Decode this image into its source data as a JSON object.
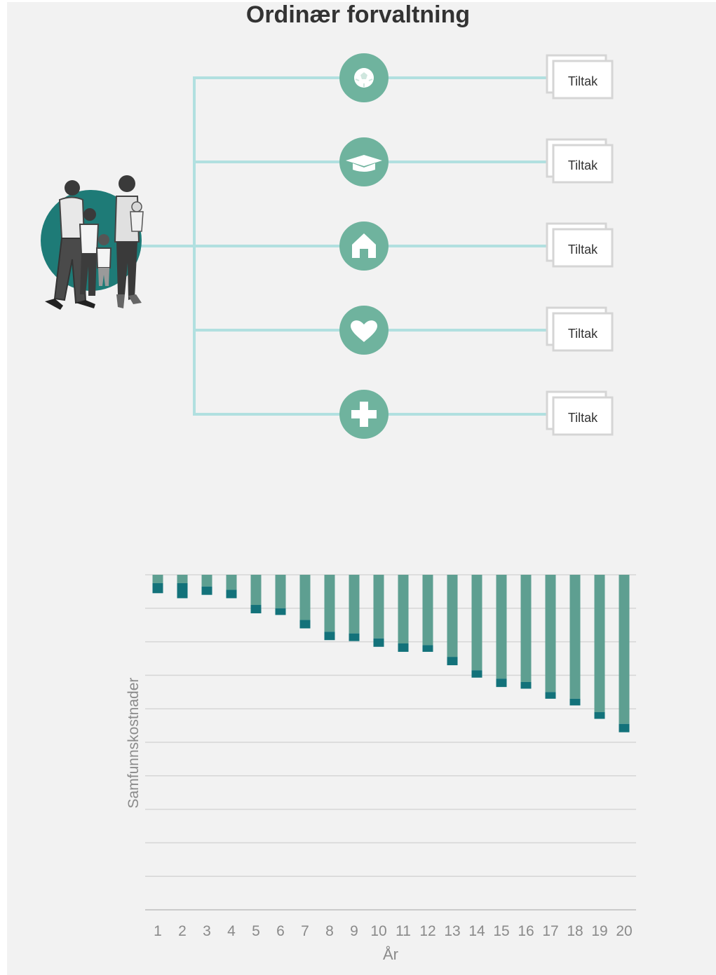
{
  "title": "Ordinær forvaltning",
  "colors": {
    "background": "#f2f2f2",
    "connector": "#b1e0e0",
    "service_circle": "#6fb39e",
    "family_circle": "#1e7b77",
    "bar_upper": "#5e9f91",
    "bar_lower": "#13727a",
    "grid": "#d6d6d6"
  },
  "diagram": {
    "family": {
      "icon": "family-icon"
    },
    "services": [
      {
        "icon": "ball-icon",
        "measure_label": "Tiltak"
      },
      {
        "icon": "graduation-cap-icon",
        "measure_label": "Tiltak"
      },
      {
        "icon": "house-icon",
        "measure_label": "Tiltak"
      },
      {
        "icon": "heart-icon",
        "measure_label": "Tiltak"
      },
      {
        "icon": "medical-cross-icon",
        "measure_label": "Tiltak"
      }
    ]
  },
  "chart_data": {
    "type": "bar",
    "stacked": true,
    "direction": "downward",
    "title": "",
    "xlabel": "År",
    "ylabel": "Samfunnskostnader",
    "categories": [
      "1",
      "2",
      "3",
      "4",
      "5",
      "6",
      "7",
      "8",
      "9",
      "10",
      "11",
      "12",
      "13",
      "14",
      "15",
      "16",
      "17",
      "18",
      "19",
      "20"
    ],
    "series": [
      {
        "values": [
          0.25,
          0.25,
          0.35,
          0.45,
          0.9,
          1.0,
          1.35,
          1.7,
          1.75,
          1.9,
          2.05,
          2.1,
          2.45,
          2.85,
          3.1,
          3.2,
          3.5,
          3.7,
          4.1,
          4.45
        ]
      },
      {
        "values": [
          0.55,
          0.7,
          0.6,
          0.7,
          1.15,
          1.2,
          1.6,
          1.95,
          1.98,
          2.15,
          2.3,
          2.3,
          2.7,
          3.07,
          3.35,
          3.4,
          3.7,
          3.9,
          4.3,
          4.7
        ]
      }
    ],
    "ylim": [
      0,
      10
    ],
    "grid": true
  }
}
